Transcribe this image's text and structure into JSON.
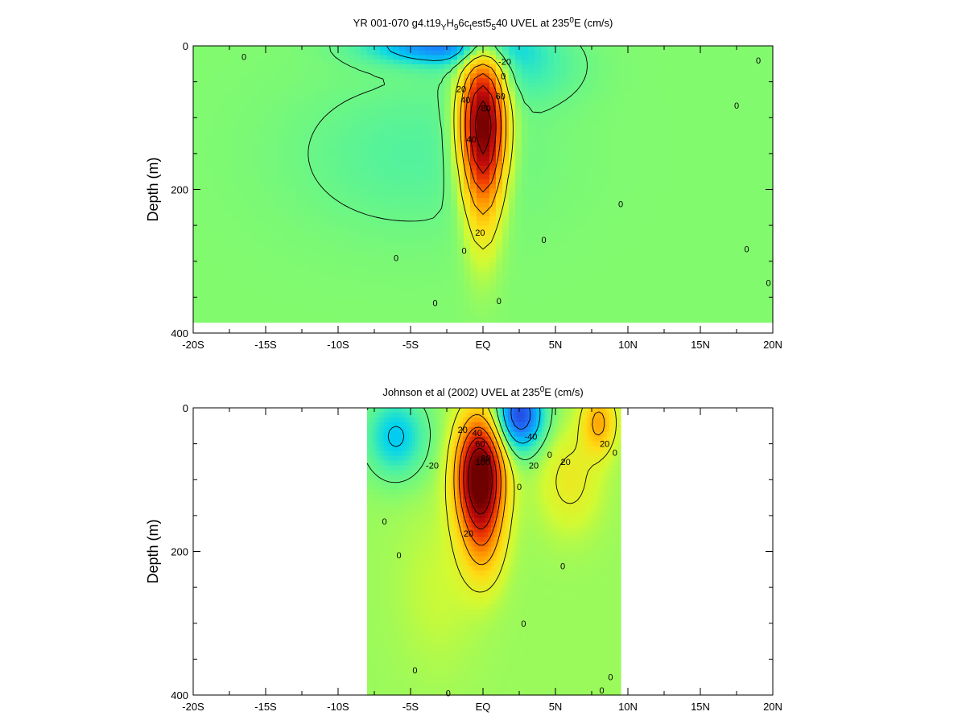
{
  "chart_data": [
    {
      "type": "heatmap",
      "title_main": "YR 001-070 g4.t19",
      "title_parts": [
        {
          "t": "YR 001-070 g4.t19",
          "s": ""
        },
        {
          "t": "Y",
          "s": "sub"
        },
        {
          "t": "H",
          "s": ""
        },
        {
          "t": "9",
          "s": "sub"
        },
        {
          "t": "6c",
          "s": ""
        },
        {
          "t": "t",
          "s": "sub"
        },
        {
          "t": "est5",
          "s": ""
        },
        {
          "t": "5",
          "s": "sub"
        },
        {
          "t": "40 UVEL at 235",
          "s": ""
        },
        {
          "t": "0",
          "s": "sup"
        },
        {
          "t": "E (cm/s)",
          "s": ""
        }
      ],
      "ylabel": "Depth (m)",
      "xlim": [
        -20,
        20
      ],
      "ylim": [
        0,
        400
      ],
      "y_inverted": true,
      "x_ticks": [
        -20,
        -15,
        -10,
        -5,
        0,
        5,
        10,
        15,
        20
      ],
      "x_tick_labels": [
        "-20S",
        "-15S",
        "-10S",
        "-5S",
        "EQ",
        "5N",
        "10N",
        "15N",
        "20N"
      ],
      "y_ticks": [
        0,
        200,
        400
      ],
      "y_tick_labels": [
        "0",
        "200",
        "400"
      ],
      "data_extent": {
        "x": [
          -20,
          20
        ],
        "y": [
          0,
          385
        ]
      },
      "background": 5,
      "features": [
        {
          "x": 0,
          "y": 105,
          "sx": 1.1,
          "sy": 70,
          "a": 110
        },
        {
          "x": 0,
          "y": 215,
          "sx": 0.9,
          "sy": 70,
          "a": 20
        },
        {
          "x": -3,
          "y": 0,
          "sx": 3.5,
          "sy": 18,
          "a": -40
        },
        {
          "x": -5,
          "y": 150,
          "sx": 6,
          "sy": 80,
          "a": -10
        },
        {
          "x": 2.5,
          "y": 30,
          "sx": 3,
          "sy": 35,
          "a": -15
        }
      ],
      "contour_labels": [
        {
          "x": -16.5,
          "y": 15,
          "v": "0"
        },
        {
          "x": 19,
          "y": 20,
          "v": "0"
        },
        {
          "x": 1.5,
          "y": 22,
          "v": "-20"
        },
        {
          "x": 1.4,
          "y": 42,
          "v": "0"
        },
        {
          "x": -1.5,
          "y": 60,
          "v": "20"
        },
        {
          "x": -1.2,
          "y": 75,
          "v": "40"
        },
        {
          "x": 1.2,
          "y": 70,
          "v": "60"
        },
        {
          "x": 0.2,
          "y": 87,
          "v": "80"
        },
        {
          "x": -0.8,
          "y": 130,
          "v": "40"
        },
        {
          "x": -0.2,
          "y": 260,
          "v": "20"
        },
        {
          "x": 17.5,
          "y": 83,
          "v": "0"
        },
        {
          "x": 9.5,
          "y": 220,
          "v": "0"
        },
        {
          "x": 4.2,
          "y": 270,
          "v": "0"
        },
        {
          "x": -6,
          "y": 295,
          "v": "0"
        },
        {
          "x": -1.3,
          "y": 285,
          "v": "0"
        },
        {
          "x": 1.1,
          "y": 355,
          "v": "0"
        },
        {
          "x": -3.3,
          "y": 358,
          "v": "0"
        },
        {
          "x": 18.2,
          "y": 283,
          "v": "0"
        },
        {
          "x": 19.7,
          "y": 330,
          "v": "0"
        }
      ]
    },
    {
      "type": "heatmap",
      "title_parts": [
        {
          "t": "Johnson et al (2002) UVEL at 235",
          "s": ""
        },
        {
          "t": "0",
          "s": "sup"
        },
        {
          "t": "E (cm/s)",
          "s": ""
        }
      ],
      "ylabel": "Depth (m)",
      "xlim": [
        -20,
        20
      ],
      "ylim": [
        0,
        400
      ],
      "y_inverted": true,
      "x_ticks": [
        -20,
        -15,
        -10,
        -5,
        0,
        5,
        10,
        15,
        20
      ],
      "x_tick_labels": [
        "-20S",
        "-15S",
        "-10S",
        "-5S",
        "EQ",
        "5N",
        "10N",
        "15N",
        "20N"
      ],
      "y_ticks": [
        0,
        200,
        400
      ],
      "y_tick_labels": [
        "0",
        "200",
        "400"
      ],
      "data_extent": {
        "x": [
          -8,
          9.5
        ],
        "y": [
          0,
          400
        ]
      },
      "background": 8,
      "features": [
        {
          "x": -0.2,
          "y": 95,
          "sx": 1.1,
          "sy": 55,
          "a": 120
        },
        {
          "x": 0,
          "y": 190,
          "sx": 1,
          "sy": 45,
          "a": 25
        },
        {
          "x": 2.5,
          "y": 10,
          "sx": 1.2,
          "sy": 35,
          "a": -60
        },
        {
          "x": -6,
          "y": 40,
          "sx": 1.5,
          "sy": 40,
          "a": -30
        },
        {
          "x": 8,
          "y": 20,
          "sx": 0.8,
          "sy": 30,
          "a": 35
        },
        {
          "x": 6,
          "y": 100,
          "sx": 1.5,
          "sy": 50,
          "a": 15
        },
        {
          "x": -3,
          "y": 250,
          "sx": 2,
          "sy": 80,
          "a": 6
        }
      ],
      "contour_labels": [
        {
          "x": -1.4,
          "y": 30,
          "v": "20"
        },
        {
          "x": -0.4,
          "y": 35,
          "v": "40"
        },
        {
          "x": -0.2,
          "y": 50,
          "v": "60"
        },
        {
          "x": 0.2,
          "y": 70,
          "v": "80"
        },
        {
          "x": 0,
          "y": 75,
          "v": "100"
        },
        {
          "x": 3.3,
          "y": 40,
          "v": "-40"
        },
        {
          "x": -3.5,
          "y": 80,
          "v": "-20"
        },
        {
          "x": 3.5,
          "y": 80,
          "v": "20"
        },
        {
          "x": 5.7,
          "y": 75,
          "v": "20"
        },
        {
          "x": 8.4,
          "y": 50,
          "v": "20"
        },
        {
          "x": -1,
          "y": 175,
          "v": "20"
        },
        {
          "x": 2.5,
          "y": 110,
          "v": "0"
        },
        {
          "x": 4.6,
          "y": 65,
          "v": "0"
        },
        {
          "x": 9.1,
          "y": 62,
          "v": "0"
        },
        {
          "x": -6.8,
          "y": 158,
          "v": "0"
        },
        {
          "x": -5.8,
          "y": 205,
          "v": "0"
        },
        {
          "x": 5.5,
          "y": 220,
          "v": "0"
        },
        {
          "x": 2.8,
          "y": 300,
          "v": "0"
        },
        {
          "x": -4.7,
          "y": 365,
          "v": "0"
        },
        {
          "x": 8.8,
          "y": 375,
          "v": "0"
        },
        {
          "x": 8.2,
          "y": 393,
          "v": "0"
        },
        {
          "x": -2.4,
          "y": 397,
          "v": "0"
        }
      ]
    }
  ]
}
